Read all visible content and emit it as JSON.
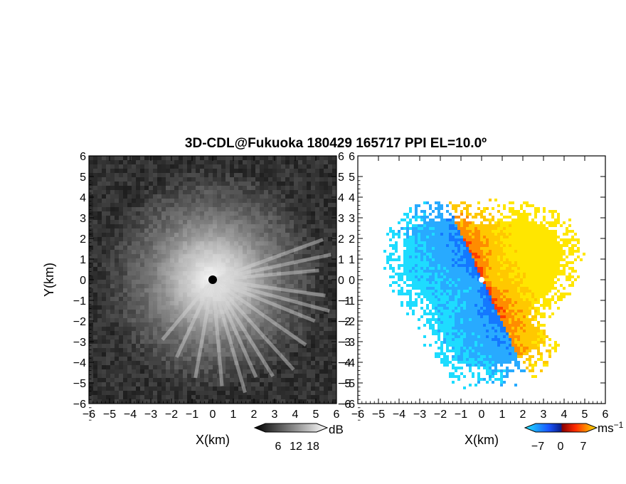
{
  "title": "3D-CDL@Fukuoka 180429 165717 PPI EL=10.0º",
  "chart_data": [
    {
      "type": "heatmap",
      "panel": "backscatter",
      "xlabel": "X(km)",
      "ylabel": "Y(km)",
      "xlim": [
        -6,
        6
      ],
      "ylim": [
        -6,
        6
      ],
      "xticks": [
        -6,
        -5,
        -4,
        -3,
        -2,
        -1,
        0,
        1,
        2,
        3,
        4,
        5,
        6
      ],
      "yticks": [
        -6,
        -5,
        -4,
        -3,
        -2,
        -1,
        0,
        1,
        2,
        3,
        4,
        5,
        6
      ],
      "colorbar": {
        "unit": "dB",
        "ticks": [
          6,
          12,
          18
        ],
        "colormap": "grayscale",
        "colors": [
          "#000000",
          "#ffffff"
        ]
      },
      "description_values": {
        "center_x": 0,
        "center_y": 0,
        "max_range_km": 6
      }
    },
    {
      "type": "heatmap",
      "panel": "doppler_velocity",
      "xlabel": "X(km)",
      "ylabel": "",
      "xlim": [
        -6,
        6
      ],
      "ylim": [
        -6,
        6
      ],
      "xticks": [
        -6,
        -5,
        -4,
        -3,
        -2,
        -1,
        0,
        1,
        2,
        3,
        4,
        5,
        6
      ],
      "yticks": [
        -6,
        -5,
        -4,
        -3,
        -2,
        -1,
        0,
        1,
        2,
        3,
        4,
        5,
        6
      ],
      "colorbar": {
        "unit": "ms⁻¹",
        "ticks": [
          -7,
          0,
          7
        ],
        "colormap": "cyan-blue-red-yellow",
        "colors": [
          "#1ee6ff",
          "#1a55ff",
          "#ff2a00",
          "#ffe600"
        ]
      }
    }
  ],
  "colorbar_labels": {
    "left_unit": "dB",
    "left_ticks": [
      "6",
      "12",
      "18"
    ],
    "right_unit": "ms",
    "right_unit_exp": "−1",
    "right_ticks": [
      "−7",
      "0",
      "7"
    ]
  },
  "tick_labels": [
    "−6",
    "−5",
    "−4",
    "−3",
    "−2",
    "−1",
    "0",
    "1",
    "2",
    "3",
    "4",
    "5",
    "6"
  ],
  "axis_labels": {
    "x_left": "X(km)",
    "x_right": "X(km)",
    "y_left": "Y(km)"
  }
}
